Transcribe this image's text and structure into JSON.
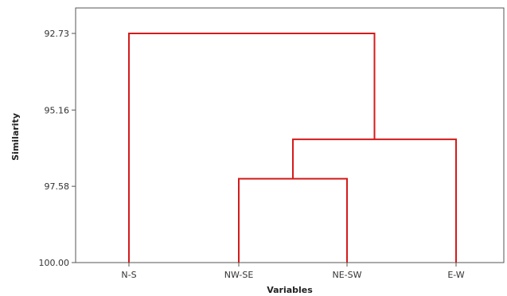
{
  "chart_data": {
    "type": "dendrogram",
    "title": "",
    "xlabel": "Variables",
    "ylabel": "Similarity",
    "leaves": [
      "N-S",
      "NW-SE",
      "NE-SW",
      "E-W"
    ],
    "y_ticks": [
      92.73,
      95.16,
      97.58,
      100.0
    ],
    "y_tick_labels": [
      "92.73",
      "95.16",
      "97.58",
      "100.00"
    ],
    "ylim": [
      100.0,
      92.73
    ],
    "merges": [
      {
        "left": "NW-SE",
        "right": "NE-SW",
        "similarity": 97.34
      },
      {
        "left": "NW-SE+NE-SW",
        "right": "E-W",
        "similarity": 96.09
      },
      {
        "left": "N-S",
        "right": "NW-SE+NE-SW+E-W",
        "similarity": 92.73
      }
    ],
    "line_color": "#d41b1b",
    "grid": false
  }
}
